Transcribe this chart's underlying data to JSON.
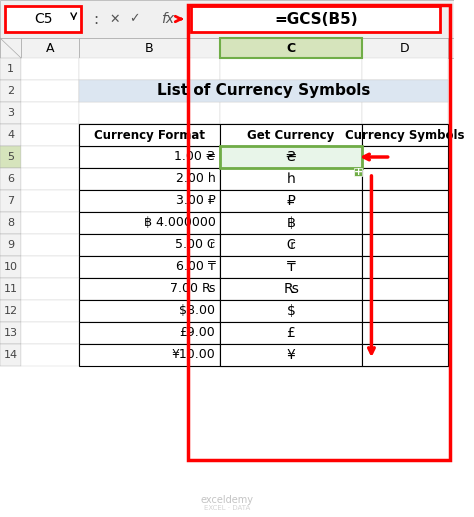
{
  "title": "List of Currency Symbols",
  "formula_bar_cell": "C5",
  "formula_bar_formula": "=GCS(B5)",
  "col_headers": [
    "A",
    "B",
    "C",
    "D"
  ],
  "row_numbers": [
    "1",
    "2",
    "3",
    "4",
    "5",
    "6",
    "7",
    "8",
    "9",
    "10",
    "11",
    "12",
    "13",
    "14"
  ],
  "table_headers": [
    "Currency Format",
    "Get Currency",
    "Currency Symbols"
  ],
  "rows": [
    [
      "1.00 ₴",
      "₴",
      ""
    ],
    [
      "2.00 հ",
      "հ",
      ""
    ],
    [
      "3.00 ₽",
      "₽",
      ""
    ],
    [
      "฿ 4.000000",
      "฿",
      ""
    ],
    [
      "5.00 ₢",
      "₢",
      ""
    ],
    [
      "6.00 ₸",
      "₸",
      ""
    ],
    [
      "7.00 ₨",
      "₨",
      ""
    ],
    [
      "$8.00",
      "$",
      ""
    ],
    [
      "£9.00",
      "£",
      ""
    ],
    [
      "¥10.00",
      "¥",
      ""
    ]
  ],
  "bg_color_title": "#dce6f1",
  "bg_color_header": "#ffffff",
  "bg_color_table_header": "#ffffff",
  "bg_color_row_even": "#ffffff",
  "bg_color_selected_col": "#e2efda",
  "border_color": "#000000",
  "red_color": "#ff0000",
  "col_header_bg": "#f2f2f2",
  "row_header_bg": "#f2f2f2",
  "formula_bar_bg": "#ffffff",
  "selected_cell_highlight": "#70ad47",
  "fig_width": 4.74,
  "fig_height": 5.17
}
